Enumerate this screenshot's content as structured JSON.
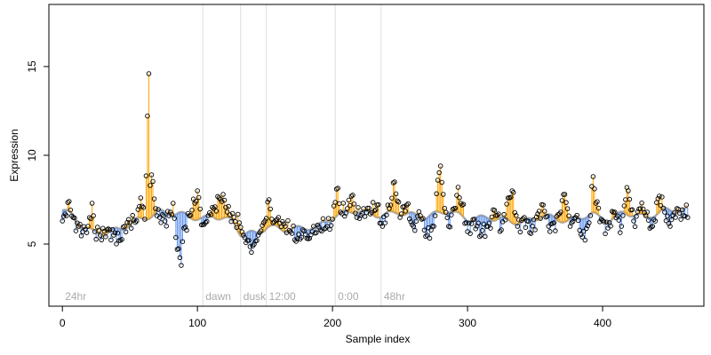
{
  "chart_data": {
    "type": "scatter",
    "xlabel": "Sample index",
    "ylabel": "Expression",
    "xlim": [
      -10,
      475
    ],
    "ylim": [
      1.5,
      18.5
    ],
    "x_ticks": [
      0,
      100,
      200,
      300,
      400
    ],
    "y_ticks": [
      5,
      10,
      15
    ],
    "colors": {
      "above_baseline": "#FFA500",
      "below_baseline": "#6495ED",
      "baseline": "#A9A9A9",
      "separator": "#DDDDDD",
      "segment_label": "#AAAAAA",
      "point_edge": "#000000"
    },
    "segments": [
      {
        "label": "24hr",
        "start": 0
      },
      {
        "label": "dawn",
        "start": 104
      },
      {
        "label": "dusk",
        "start": 132
      },
      {
        "label": "12:00",
        "start": 151
      },
      {
        "label": "0:00",
        "start": 202
      },
      {
        "label": "48hr",
        "start": 236
      }
    ],
    "anchor_points": [
      [
        0,
        6.3
      ],
      [
        3,
        6.6
      ],
      [
        5,
        7.4
      ],
      [
        8,
        6.5
      ],
      [
        12,
        6.0
      ],
      [
        15,
        5.7
      ],
      [
        19,
        6.0
      ],
      [
        22,
        7.3
      ],
      [
        24,
        5.7
      ],
      [
        28,
        5.5
      ],
      [
        33,
        5.8
      ],
      [
        38,
        5.5
      ],
      [
        42,
        5.2
      ],
      [
        46,
        6.0
      ],
      [
        50,
        6.2
      ],
      [
        55,
        6.3
      ],
      [
        58,
        7.6
      ],
      [
        61,
        6.4
      ],
      [
        64,
        14.6
      ],
      [
        65,
        8.3
      ],
      [
        66,
        8.9
      ],
      [
        69,
        7.0
      ],
      [
        72,
        6.5
      ],
      [
        76,
        6.3
      ],
      [
        80,
        6.8
      ],
      [
        82,
        7.3
      ],
      [
        85,
        4.7
      ],
      [
        88,
        3.8
      ],
      [
        90,
        5.9
      ],
      [
        94,
        6.6
      ],
      [
        98,
        7.3
      ],
      [
        100,
        8.0
      ],
      [
        104,
        6.1
      ],
      [
        108,
        6.6
      ],
      [
        112,
        7.0
      ],
      [
        116,
        7.6
      ],
      [
        119,
        7.8
      ],
      [
        122,
        6.8
      ],
      [
        127,
        6.5
      ],
      [
        131,
        6.2
      ],
      [
        134,
        5.5
      ],
      [
        137,
        5.2
      ],
      [
        141,
        4.9
      ],
      [
        145,
        5.5
      ],
      [
        149,
        6.2
      ],
      [
        153,
        7.5
      ],
      [
        156,
        6.2
      ],
      [
        160,
        6.5
      ],
      [
        165,
        6.0
      ],
      [
        170,
        5.6
      ],
      [
        174,
        5.3
      ],
      [
        178,
        5.8
      ],
      [
        182,
        5.3
      ],
      [
        186,
        6.0
      ],
      [
        191,
        5.8
      ],
      [
        196,
        6.0
      ],
      [
        200,
        6.4
      ],
      [
        203,
        8.1
      ],
      [
        206,
        6.8
      ],
      [
        211,
        7.0
      ],
      [
        214,
        7.7
      ],
      [
        218,
        6.5
      ],
      [
        223,
        7.0
      ],
      [
        228,
        6.7
      ],
      [
        233,
        7.2
      ],
      [
        237,
        6.0
      ],
      [
        242,
        7.0
      ],
      [
        246,
        8.5
      ],
      [
        250,
        6.5
      ],
      [
        255,
        7.2
      ],
      [
        260,
        6.0
      ],
      [
        265,
        6.6
      ],
      [
        270,
        5.5
      ],
      [
        275,
        6.0
      ],
      [
        278,
        8.6
      ],
      [
        280,
        9.4
      ],
      [
        282,
        7.8
      ],
      [
        286,
        6.0
      ],
      [
        290,
        7.0
      ],
      [
        293,
        8.2
      ],
      [
        296,
        7.2
      ],
      [
        300,
        5.7
      ],
      [
        305,
        6.4
      ],
      [
        310,
        5.5
      ],
      [
        315,
        6.0
      ],
      [
        320,
        6.9
      ],
      [
        325,
        5.8
      ],
      [
        330,
        7.6
      ],
      [
        333,
        8.0
      ],
      [
        337,
        6.0
      ],
      [
        342,
        6.5
      ],
      [
        347,
        5.6
      ],
      [
        352,
        6.7
      ],
      [
        356,
        7.2
      ],
      [
        360,
        6.0
      ],
      [
        364,
        6.2
      ],
      [
        369,
        6.8
      ],
      [
        372,
        7.8
      ],
      [
        376,
        6.0
      ],
      [
        380,
        6.5
      ],
      [
        385,
        5.4
      ],
      [
        390,
        6.2
      ],
      [
        393,
        8.8
      ],
      [
        395,
        7.3
      ],
      [
        399,
        6.4
      ],
      [
        404,
        5.9
      ],
      [
        409,
        6.8
      ],
      [
        414,
        6.0
      ],
      [
        417,
        7.5
      ],
      [
        419,
        8.0
      ],
      [
        423,
        6.3
      ],
      [
        428,
        7.0
      ],
      [
        432,
        6.6
      ],
      [
        437,
        6.0
      ],
      [
        442,
        7.7
      ],
      [
        446,
        6.8
      ],
      [
        450,
        6.0
      ],
      [
        455,
        7.0
      ],
      [
        460,
        6.6
      ],
      [
        462,
        7.2
      ],
      [
        463,
        6.5
      ]
    ],
    "baseline_levels": [
      [
        0,
        6.9
      ],
      [
        8,
        6.6
      ],
      [
        12,
        6.1
      ],
      [
        22,
        5.7
      ],
      [
        32,
        5.6
      ],
      [
        44,
        5.9
      ],
      [
        54,
        6.3
      ],
      [
        62,
        6.5
      ],
      [
        72,
        6.8
      ],
      [
        86,
        6.7
      ],
      [
        104,
        6.4
      ],
      [
        112,
        6.6
      ],
      [
        126,
        6.3
      ],
      [
        132,
        5.6
      ],
      [
        144,
        5.6
      ],
      [
        152,
        6.0
      ],
      [
        166,
        5.8
      ],
      [
        178,
        5.9
      ],
      [
        190,
        6.0
      ],
      [
        202,
        6.6
      ],
      [
        216,
        6.9
      ],
      [
        236,
        6.6
      ],
      [
        248,
        6.8
      ],
      [
        268,
        6.5
      ],
      [
        286,
        6.9
      ],
      [
        300,
        6.4
      ],
      [
        316,
        6.5
      ],
      [
        340,
        6.2
      ],
      [
        356,
        6.6
      ],
      [
        374,
        6.3
      ],
      [
        392,
        6.7
      ],
      [
        404,
        6.3
      ],
      [
        416,
        6.8
      ],
      [
        432,
        6.5
      ],
      [
        446,
        6.9
      ],
      [
        463,
        6.9
      ]
    ],
    "n_points": 464
  }
}
